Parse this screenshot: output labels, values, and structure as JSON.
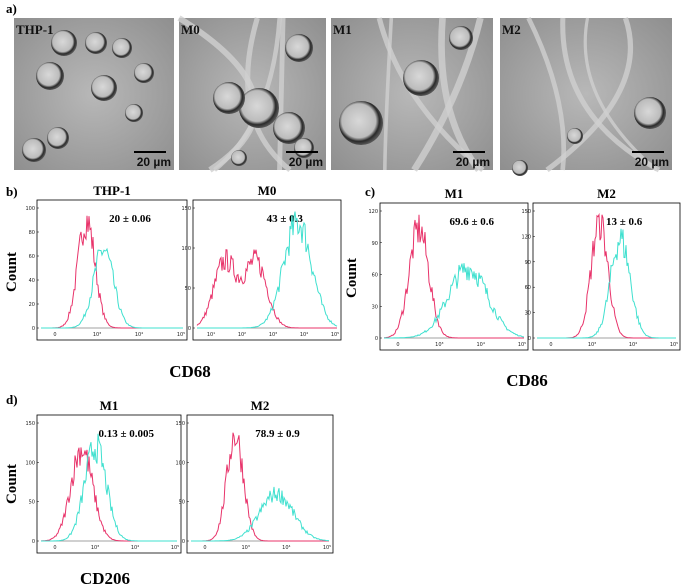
{
  "panel_a": {
    "label": "a)",
    "images": [
      {
        "label": "THP-1",
        "scale": "20 µm"
      },
      {
        "label": "M0",
        "scale": "20 µm"
      },
      {
        "label": "M1",
        "scale": "20 µm"
      },
      {
        "label": "M2",
        "scale": "20 µm"
      }
    ]
  },
  "panel_b": {
    "label": "b)",
    "y_axis": "Count",
    "x_axis": "CD68",
    "plots": [
      {
        "title": "THP-1",
        "stat": "20 ± 0.06",
        "yticks": [
          "0",
          "20",
          "40",
          "60",
          "80",
          "100"
        ],
        "xticks": [
          "0",
          "10³",
          "10⁴",
          "10⁵"
        ]
      },
      {
        "title": "M0",
        "stat": "43 ±  0.3",
        "yticks": [
          "0",
          "50",
          "100",
          "150"
        ],
        "xticks": [
          "10¹",
          "10²",
          "10³",
          "10⁴",
          "10⁵"
        ]
      }
    ]
  },
  "panel_c": {
    "label": "c)",
    "y_axis": "Count",
    "x_axis": "CD86",
    "plots": [
      {
        "title": "M1",
        "stat": "69.6 ± 0.6",
        "yticks": [
          "0",
          "30",
          "60",
          "90",
          "120"
        ],
        "xticks": [
          "0",
          "10³",
          "10⁴",
          "10⁵"
        ]
      },
      {
        "title": "M2",
        "stat": "13 ± 0.6",
        "yticks": [
          "0",
          "30",
          "60",
          "90",
          "120",
          "150"
        ],
        "xticks": [
          "0",
          "10³",
          "10⁴",
          "10⁵"
        ]
      }
    ]
  },
  "panel_d": {
    "label": "d)",
    "y_axis": "Count",
    "x_axis": "CD206",
    "plots": [
      {
        "title": "M1",
        "stat": "0.13 ± 0.005",
        "yticks": [
          "0",
          "50",
          "100",
          "150"
        ],
        "xticks": [
          "0",
          "10³",
          "10⁴",
          "10⁵"
        ]
      },
      {
        "title": "M2",
        "stat": "78.9 ± 0.9",
        "yticks": [
          "0",
          "50",
          "100",
          "150"
        ],
        "xticks": [
          "0",
          "10³",
          "10⁴",
          "10⁵"
        ]
      }
    ]
  }
}
